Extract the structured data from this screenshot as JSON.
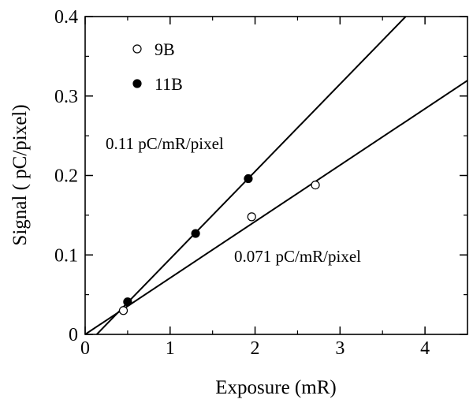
{
  "chart_data": {
    "type": "scatter",
    "title": "",
    "xlabel": "Exposure (mR)",
    "ylabel": "Signal ( pC/pixel)",
    "xlim": [
      0,
      4.5
    ],
    "ylim": [
      0,
      0.4
    ],
    "xticks": [
      0,
      1,
      2,
      3,
      4
    ],
    "xtick_labels": [
      "0",
      "1",
      "2",
      "3",
      "4"
    ],
    "yticks": [
      0,
      0.1,
      0.2,
      0.3,
      0.4
    ],
    "ytick_labels": [
      "0",
      "0.1",
      "0.2",
      "0.3",
      "0.4"
    ],
    "grid": false,
    "legend": "top-left",
    "series": [
      {
        "name": "9B",
        "marker": "open-circle",
        "points": [
          {
            "x": 0.45,
            "y": 0.03
          },
          {
            "x": 1.96,
            "y": 0.148
          },
          {
            "x": 2.71,
            "y": 0.188
          }
        ]
      },
      {
        "name": "11B",
        "marker": "filled-circle",
        "points": [
          {
            "x": 0.5,
            "y": 0.041
          },
          {
            "x": 1.3,
            "y": 0.127
          },
          {
            "x": 1.92,
            "y": 0.196
          }
        ]
      }
    ],
    "fits": [
      {
        "series": "11B",
        "slope": 0.11,
        "intercept": -0.015,
        "label": "0.11 pC/mR/pixel"
      },
      {
        "series": "9B",
        "slope": 0.071,
        "intercept": 0.0,
        "label": "0.071 pC/mR/pixel"
      }
    ]
  }
}
